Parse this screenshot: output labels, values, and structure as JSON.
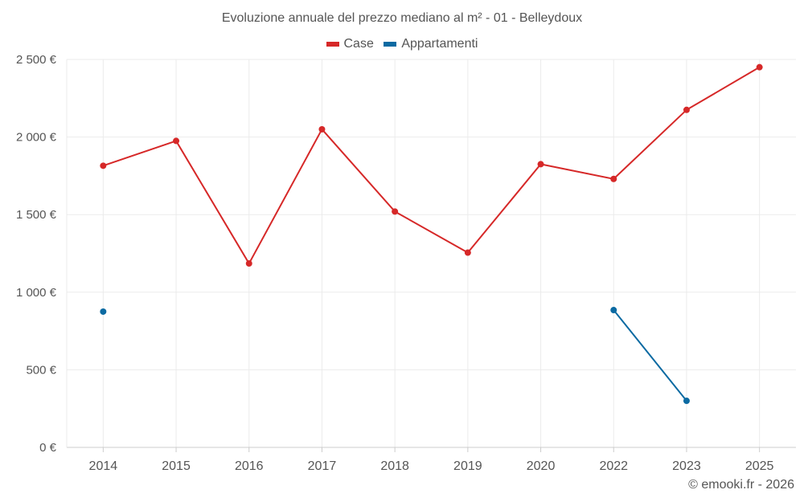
{
  "chart_data": {
    "type": "line",
    "title": "Evoluzione annuale del prezzo mediano al m² - 01 - Belleydoux",
    "categories": [
      "2014",
      "2015",
      "2016",
      "2017",
      "2018",
      "2019",
      "2020",
      "2022",
      "2023",
      "2025"
    ],
    "y_tick_labels": [
      "0 €",
      "500 €",
      "1 000 €",
      "1 500 €",
      "2 000 €",
      "2 500 €"
    ],
    "y_ticks": [
      0,
      500,
      1000,
      1500,
      2000,
      2500
    ],
    "ylim": [
      0,
      2500
    ],
    "xlabel": "",
    "ylabel": "",
    "grid": true,
    "legend_position": "top-center",
    "series": [
      {
        "name": "Case",
        "color": "#d62828",
        "values": [
          1815,
          1975,
          1185,
          2050,
          1520,
          1255,
          1825,
          1730,
          2175,
          2450
        ]
      },
      {
        "name": "Appartamenti",
        "color": "#0b6aa2",
        "values": [
          875,
          null,
          null,
          null,
          null,
          null,
          null,
          885,
          300,
          null
        ]
      }
    ]
  },
  "watermark": "© emooki.fr - 2026"
}
